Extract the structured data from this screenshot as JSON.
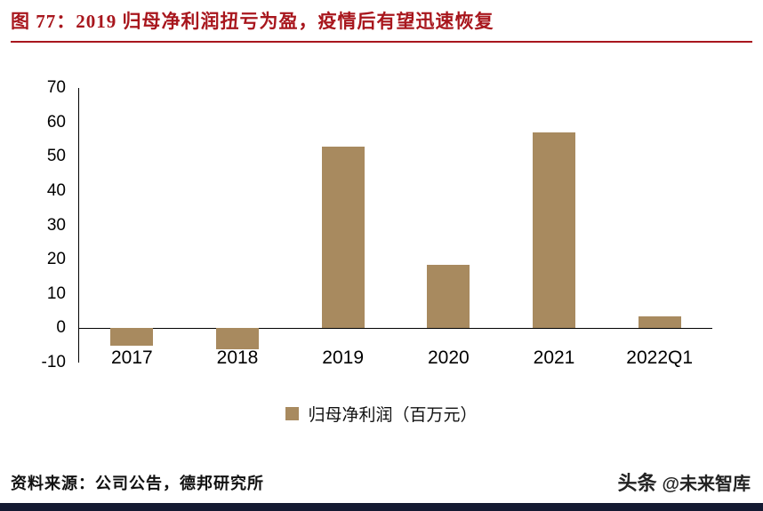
{
  "title": "图 77：2019 归母净利润扭亏为盈，疫情后有望迅速恢复",
  "source": "资料来源：公司公告，德邦研究所",
  "watermark": {
    "brand": "头条",
    "handle": "@未来智库"
  },
  "colors": {
    "title_red": "#a8161d",
    "bar": "#a88a5f",
    "axis": "#000000",
    "footer_bar": "#141a32"
  },
  "chart_data": {
    "type": "bar",
    "categories": [
      "2017",
      "2018",
      "2019",
      "2020",
      "2021",
      "2022Q1"
    ],
    "values": [
      -5,
      -6,
      53,
      18.5,
      57,
      3.5
    ],
    "title": "",
    "xlabel": "",
    "ylabel": "",
    "ylim": [
      -10,
      70
    ],
    "yticks": [
      70,
      60,
      50,
      40,
      30,
      20,
      10,
      0,
      -10
    ],
    "legend": [
      "归母净利润（百万元）"
    ],
    "legend_position": "bottom",
    "grid": false
  }
}
